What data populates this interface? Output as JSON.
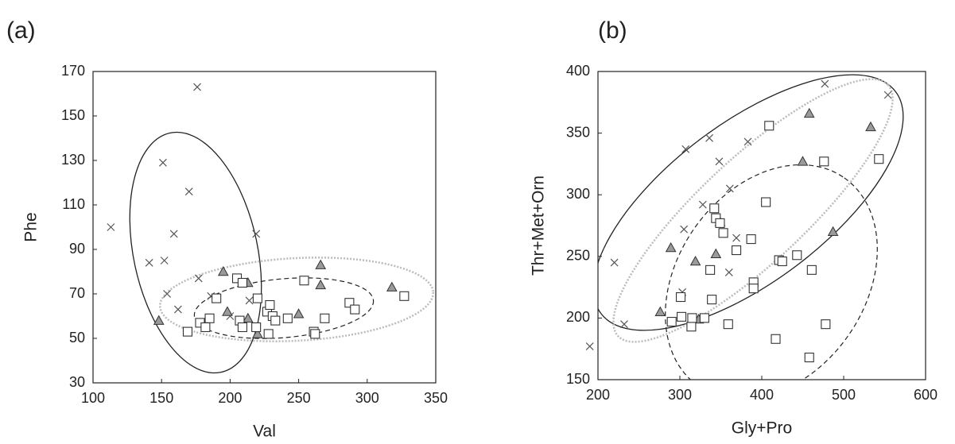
{
  "chart_data": [
    {
      "type": "scatter",
      "title": "(a)",
      "xlabel": "Val",
      "ylabel": "Phe",
      "xlim": [
        100,
        350
      ],
      "xticks": [
        100,
        150,
        200,
        250,
        300,
        350
      ],
      "ylim": [
        30,
        170
      ],
      "yticks": [
        30,
        50,
        70,
        90,
        110,
        130,
        150,
        170
      ],
      "series": [
        {
          "marker": "x",
          "color": "#555555",
          "x": [
            113,
            141,
            151,
            152,
            154,
            159,
            162,
            170,
            176,
            177,
            186,
            219,
            214,
            200
          ],
          "y": [
            100,
            84,
            129,
            85,
            70,
            97,
            63,
            116,
            163,
            77,
            69,
            97,
            67,
            60
          ]
        },
        {
          "marker": "triangle",
          "color": "#9a9a9a",
          "x": [
            148,
            195,
            198,
            213,
            213,
            220,
            250,
            266,
            266,
            318
          ],
          "y": [
            58,
            80,
            62,
            75,
            59,
            52,
            61,
            83,
            74,
            73
          ]
        },
        {
          "marker": "square",
          "color": "#ffffff",
          "x": [
            169,
            178,
            182,
            185,
            190,
            205,
            207,
            209,
            209,
            219,
            220,
            227,
            229,
            231,
            233,
            228,
            242,
            254,
            261,
            262,
            269,
            287,
            291,
            327
          ],
          "y": [
            53,
            57,
            55,
            59,
            68,
            77,
            58,
            75,
            55,
            55,
            68,
            62,
            65,
            60,
            58,
            52,
            59,
            76,
            53,
            52,
            59,
            66,
            63,
            69
          ]
        }
      ]
    },
    {
      "type": "scatter",
      "title": "(b)",
      "xlabel": "Gly+Pro",
      "ylabel": "Thr+Met+Orn",
      "xlim": [
        200,
        600
      ],
      "xticks": [
        200,
        300,
        400,
        500,
        600
      ],
      "ylim": [
        150,
        400
      ],
      "yticks": [
        150,
        200,
        250,
        300,
        350,
        400
      ],
      "series": [
        {
          "marker": "x",
          "color": "#555555",
          "x": [
            190,
            220,
            232,
            307,
            305,
            328,
            303,
            336,
            348,
            361,
            383,
            360,
            369,
            477,
            554
          ],
          "y": [
            177,
            245,
            195,
            337,
            272,
            292,
            221,
            346,
            327,
            305,
            343,
            237,
            265,
            390,
            381
          ]
        },
        {
          "marker": "triangle",
          "color": "#9a9a9a",
          "x": [
            276,
            289,
            319,
            323,
            349,
            344,
            458,
            450,
            533,
            487
          ],
          "y": [
            205,
            257,
            246,
            199,
            278,
            252,
            366,
            327,
            355,
            270
          ]
        },
        {
          "marker": "square",
          "color": "#ffffff",
          "x": [
            290,
            302,
            314,
            315,
            301,
            330,
            337,
            339,
            342,
            344,
            349,
            353,
            359,
            369,
            387,
            390,
            390,
            405,
            409,
            421,
            425,
            443,
            461,
            476,
            478,
            458,
            417,
            543
          ],
          "y": [
            197,
            201,
            193,
            200,
            217,
            200,
            239,
            215,
            289,
            281,
            277,
            269,
            195,
            255,
            264,
            229,
            224,
            294,
            356,
            247,
            246,
            251,
            239,
            327,
            195,
            168,
            183,
            329
          ]
        }
      ]
    }
  ]
}
